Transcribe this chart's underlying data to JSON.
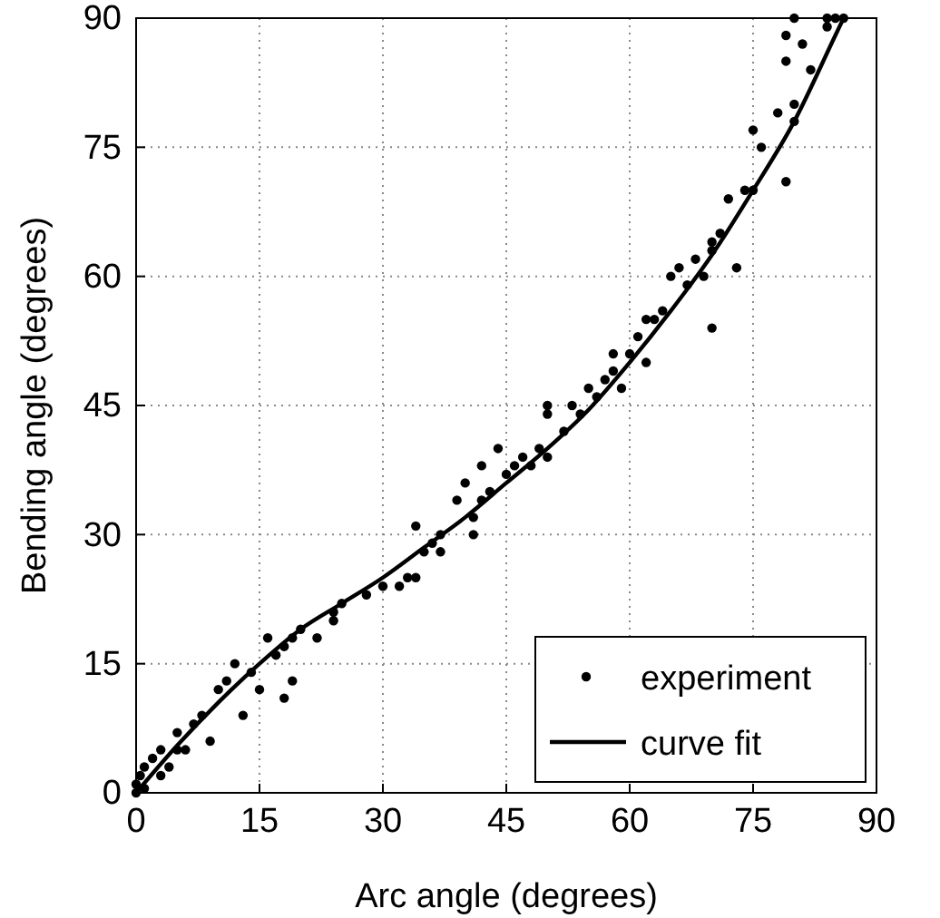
{
  "chart_data": {
    "type": "scatter",
    "xlabel": "Arc angle (degrees)",
    "ylabel": "Bending angle (degrees)",
    "xlim": [
      0,
      90
    ],
    "ylim": [
      0,
      90
    ],
    "xticks": [
      0,
      15,
      30,
      45,
      60,
      75,
      90
    ],
    "yticks": [
      0,
      15,
      30,
      45,
      60,
      75,
      90
    ],
    "grid": true,
    "legend": "bottom right",
    "series": [
      {
        "name": "experiment",
        "marker": "circle",
        "color": "#000000",
        "x": [
          0,
          0,
          0.5,
          1,
          1,
          2,
          3,
          3,
          4,
          5,
          5,
          6,
          7,
          8,
          9,
          10,
          11,
          12,
          13,
          14,
          15,
          16,
          17,
          18,
          18,
          19,
          19,
          20,
          22,
          24,
          24,
          25,
          28,
          30,
          32,
          33,
          34,
          34,
          35,
          36,
          37,
          37,
          39,
          40,
          41,
          41,
          42,
          42,
          43,
          44,
          45,
          46,
          47,
          48,
          49,
          50,
          50,
          50,
          52,
          53,
          54,
          55,
          56,
          57,
          58,
          58,
          59,
          60,
          61,
          62,
          62,
          63,
          64,
          65,
          66,
          67,
          68,
          69,
          70,
          70,
          70,
          71,
          72,
          73,
          74,
          75,
          75,
          76,
          78,
          79,
          79,
          79,
          80,
          80,
          80,
          81,
          82,
          84,
          84,
          85,
          86
        ],
        "values": [
          0,
          1,
          2,
          3,
          0.5,
          4,
          5,
          2,
          3,
          5,
          7,
          5,
          8,
          9,
          6,
          12,
          13,
          15,
          9,
          14,
          12,
          18,
          16,
          17,
          11,
          13,
          18,
          19,
          18,
          20,
          21,
          22,
          23,
          24,
          24,
          25,
          31,
          25,
          28,
          29,
          30,
          28,
          34,
          36,
          30,
          32,
          34,
          38,
          35,
          40,
          37,
          38,
          39,
          38,
          40,
          39,
          44,
          45,
          42,
          45,
          44,
          47,
          46,
          48,
          49,
          51,
          47,
          51,
          53,
          50,
          55,
          55,
          56,
          60,
          61,
          59,
          62,
          60,
          63,
          64,
          54,
          65,
          69,
          61,
          70,
          70,
          77,
          75,
          79,
          71,
          85,
          88,
          80,
          78,
          90,
          87,
          84,
          90,
          89,
          90,
          90
        ]
      },
      {
        "name": "curve fit",
        "type": "line",
        "line_style": "solid",
        "color": "#000000",
        "x": [
          0,
          5,
          10,
          15,
          20,
          25,
          30,
          35,
          40,
          45,
          50,
          55,
          60,
          65,
          70,
          75,
          80,
          85,
          86
        ],
        "values": [
          0,
          5.5,
          10.5,
          15,
          19,
          22,
          25,
          28.5,
          32,
          36,
          40,
          44.5,
          50,
          56,
          62.5,
          70,
          78,
          88,
          90
        ]
      }
    ]
  }
}
